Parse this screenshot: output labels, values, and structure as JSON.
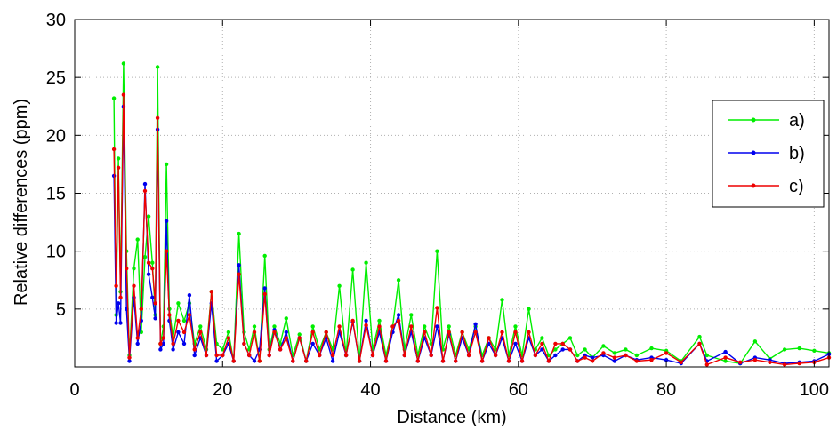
{
  "chart_data": {
    "type": "line",
    "xlabel": "Distance (km)",
    "ylabel": "Relative differences (ppm)",
    "xlim": [
      0,
      102
    ],
    "ylim": [
      0,
      30
    ],
    "xticks": [
      0,
      20,
      40,
      60,
      80,
      100
    ],
    "yticks": [
      5,
      10,
      15,
      20,
      25,
      30
    ],
    "xtick_labels": [
      "0",
      "20",
      "40",
      "60",
      "80",
      "100"
    ],
    "ytick_labels": [
      "5",
      "10",
      "15",
      "20",
      "25",
      "30"
    ],
    "grid": true,
    "legend_placement": "right",
    "series": [
      {
        "name": "a)",
        "color": "#00ee00",
        "x": [
          5.3,
          5.6,
          5.9,
          6.2,
          6.6,
          7.0,
          7.4,
          8.0,
          8.5,
          9.0,
          9.5,
          10.0,
          10.5,
          10.9,
          11.2,
          11.6,
          12.0,
          12.4,
          12.8,
          13.3,
          14.0,
          14.8,
          15.5,
          16.2,
          17.0,
          17.8,
          18.5,
          19.2,
          20.0,
          20.8,
          21.5,
          22.2,
          22.9,
          23.6,
          24.3,
          25.0,
          25.7,
          26.3,
          27.0,
          27.8,
          28.6,
          29.5,
          30.4,
          31.3,
          32.2,
          33.1,
          34.0,
          34.9,
          35.8,
          36.7,
          37.6,
          38.5,
          39.4,
          40.3,
          41.2,
          42.1,
          43.0,
          43.8,
          44.6,
          45.5,
          46.4,
          47.3,
          48.2,
          49.0,
          49.8,
          50.6,
          51.5,
          52.4,
          53.3,
          54.2,
          55.1,
          56.0,
          56.9,
          57.8,
          58.7,
          59.6,
          60.5,
          61.4,
          62.3,
          63.2,
          64.1,
          65.0,
          66.0,
          67.0,
          68.0,
          69.0,
          70.0,
          71.5,
          73.0,
          74.5,
          76.0,
          78.0,
          80.0,
          82.0,
          84.5,
          85.5,
          88.0,
          90.0,
          92.0,
          94.0,
          96.0,
          98.0,
          100.0,
          102.0
        ],
        "values": [
          23.2,
          4.5,
          18.0,
          6.5,
          26.2,
          10.0,
          1.0,
          8.5,
          11.0,
          3.0,
          9.5,
          13.0,
          9.0,
          4.5,
          25.9,
          2.0,
          3.5,
          17.5,
          5.0,
          2.5,
          5.5,
          4.0,
          5.5,
          2.0,
          3.5,
          1.5,
          6.5,
          2.0,
          1.5,
          3.0,
          0.5,
          11.5,
          3.0,
          1.5,
          3.5,
          0.5,
          9.6,
          1.5,
          3.5,
          2.0,
          4.2,
          1.0,
          2.8,
          0.5,
          3.5,
          1.5,
          3.0,
          1.5,
          7.0,
          1.0,
          8.4,
          0.5,
          9.0,
          1.5,
          4.0,
          1.0,
          3.5,
          7.5,
          1.5,
          4.5,
          1.0,
          3.5,
          2.0,
          10.0,
          1.5,
          3.5,
          1.0,
          3.0,
          1.5,
          3.5,
          1.0,
          2.5,
          1.5,
          5.8,
          1.0,
          3.5,
          1.0,
          5.0,
          1.5,
          2.5,
          1.0,
          1.5,
          2.0,
          2.5,
          1.0,
          1.5,
          0.8,
          1.8,
          1.2,
          1.5,
          1.0,
          1.6,
          1.4,
          0.5,
          2.6,
          1.0,
          0.5,
          0.3,
          2.2,
          0.7,
          1.5,
          1.6,
          1.4,
          1.2
        ]
      },
      {
        "name": "b)",
        "color": "#0000ee",
        "x": [
          5.3,
          5.6,
          5.9,
          6.2,
          6.6,
          7.0,
          7.4,
          8.0,
          8.5,
          9.0,
          9.5,
          10.0,
          10.5,
          10.9,
          11.2,
          11.6,
          12.0,
          12.4,
          12.8,
          13.3,
          14.0,
          14.8,
          15.5,
          16.2,
          17.0,
          17.8,
          18.5,
          19.2,
          20.0,
          20.8,
          21.5,
          22.2,
          22.9,
          23.6,
          24.3,
          25.0,
          25.7,
          26.3,
          27.0,
          27.8,
          28.6,
          29.5,
          30.4,
          31.3,
          32.2,
          33.1,
          34.0,
          34.9,
          35.8,
          36.7,
          37.6,
          38.5,
          39.4,
          40.3,
          41.2,
          42.1,
          43.0,
          43.8,
          44.6,
          45.5,
          46.4,
          47.3,
          48.2,
          49.0,
          49.8,
          50.6,
          51.5,
          52.4,
          53.3,
          54.2,
          55.1,
          56.0,
          56.9,
          57.8,
          58.7,
          59.6,
          60.5,
          61.4,
          62.3,
          63.2,
          64.1,
          65.0,
          66.0,
          67.0,
          68.0,
          69.0,
          70.0,
          71.5,
          73.0,
          74.5,
          76.0,
          78.0,
          80.0,
          82.0,
          84.5,
          85.5,
          88.0,
          90.0,
          92.0,
          94.0,
          96.0,
          98.0,
          100.0,
          102.0
        ],
        "values": [
          16.5,
          3.8,
          5.5,
          3.8,
          22.5,
          5.0,
          0.5,
          6.0,
          2.0,
          4.0,
          15.8,
          8.0,
          6.0,
          4.2,
          20.5,
          1.5,
          2.0,
          12.6,
          4.0,
          1.5,
          3.0,
          2.0,
          6.2,
          1.0,
          2.5,
          1.0,
          5.5,
          0.5,
          1.0,
          2.0,
          0.5,
          8.8,
          2.0,
          1.0,
          0.5,
          1.5,
          6.8,
          1.0,
          3.2,
          1.5,
          3.0,
          0.5,
          2.5,
          0.5,
          2.0,
          1.0,
          2.5,
          0.5,
          3.0,
          1.0,
          3.9,
          0.5,
          4.0,
          1.0,
          3.0,
          0.5,
          3.0,
          4.5,
          1.0,
          3.0,
          0.5,
          2.5,
          1.0,
          3.5,
          0.5,
          2.8,
          0.5,
          2.5,
          1.0,
          3.7,
          0.5,
          2.0,
          1.0,
          2.5,
          0.5,
          2.0,
          0.5,
          2.5,
          1.0,
          1.5,
          0.5,
          1.0,
          1.5,
          1.5,
          0.5,
          1.0,
          0.8,
          1.0,
          0.5,
          1.0,
          0.6,
          0.8,
          0.6,
          0.3,
          2.0,
          0.5,
          1.3,
          0.3,
          0.8,
          0.6,
          0.3,
          0.4,
          0.5,
          1.1
        ]
      },
      {
        "name": "c)",
        "color": "#ee0000",
        "x": [
          5.3,
          5.6,
          5.9,
          6.2,
          6.6,
          7.0,
          7.4,
          8.0,
          8.5,
          9.0,
          9.5,
          10.0,
          10.5,
          10.9,
          11.2,
          11.6,
          12.0,
          12.4,
          12.8,
          13.3,
          14.0,
          14.8,
          15.5,
          16.2,
          17.0,
          17.8,
          18.5,
          19.2,
          20.0,
          20.8,
          21.5,
          22.2,
          22.9,
          23.6,
          24.3,
          25.0,
          25.7,
          26.3,
          27.0,
          27.8,
          28.6,
          29.5,
          30.4,
          31.3,
          32.2,
          33.1,
          34.0,
          34.9,
          35.8,
          36.7,
          37.6,
          38.5,
          39.4,
          40.3,
          41.2,
          42.1,
          43.0,
          43.8,
          44.6,
          45.5,
          46.4,
          47.3,
          48.2,
          49.0,
          49.8,
          50.6,
          51.5,
          52.4,
          53.3,
          54.2,
          55.1,
          56.0,
          56.9,
          57.8,
          58.7,
          59.6,
          60.5,
          61.4,
          62.3,
          63.2,
          64.1,
          65.0,
          66.0,
          67.0,
          68.0,
          69.0,
          70.0,
          71.5,
          73.0,
          74.5,
          76.0,
          78.0,
          80.0,
          82.0,
          84.5,
          85.5,
          88.0,
          90.0,
          92.0,
          94.0,
          96.0,
          98.0,
          100.0,
          102.0
        ],
        "values": [
          18.8,
          7.0,
          17.2,
          6.0,
          23.5,
          8.5,
          0.8,
          7.0,
          2.5,
          5.0,
          15.2,
          9.0,
          8.5,
          5.5,
          21.5,
          2.0,
          2.5,
          10.0,
          4.5,
          2.0,
          4.0,
          3.0,
          4.5,
          1.5,
          3.0,
          1.0,
          6.5,
          1.0,
          1.0,
          2.5,
          0.5,
          8.0,
          2.0,
          1.0,
          3.0,
          0.5,
          6.3,
          1.0,
          3.0,
          1.5,
          2.5,
          0.5,
          2.5,
          0.5,
          3.0,
          1.0,
          3.0,
          1.0,
          3.5,
          1.0,
          4.0,
          0.5,
          3.6,
          1.0,
          3.5,
          0.5,
          3.5,
          4.0,
          1.0,
          3.5,
          0.5,
          3.0,
          1.0,
          5.1,
          0.5,
          3.0,
          0.5,
          3.0,
          1.0,
          3.0,
          0.5,
          2.5,
          1.0,
          3.0,
          0.5,
          3.0,
          0.5,
          3.0,
          1.0,
          2.0,
          0.5,
          2.0,
          2.0,
          1.5,
          0.5,
          0.8,
          0.5,
          1.2,
          0.8,
          1.0,
          0.5,
          0.6,
          1.2,
          0.4,
          2.0,
          0.2,
          0.8,
          0.4,
          0.6,
          0.4,
          0.2,
          0.3,
          0.4,
          0.8
        ]
      }
    ]
  }
}
